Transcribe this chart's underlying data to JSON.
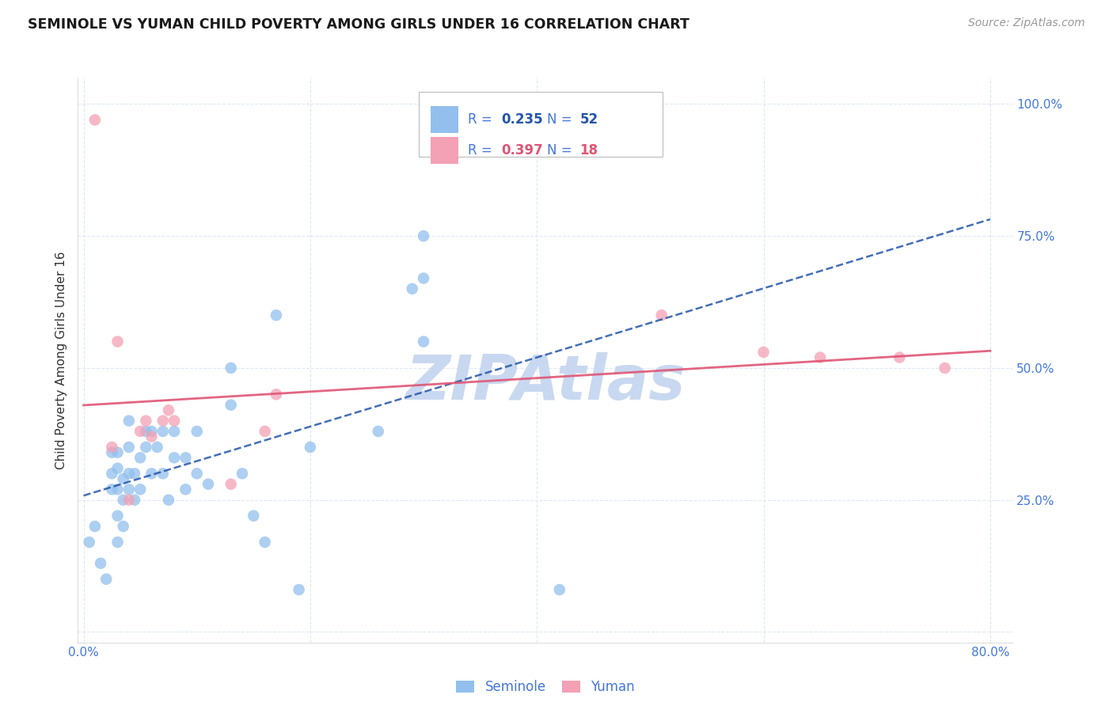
{
  "title": "SEMINOLE VS YUMAN CHILD POVERTY AMONG GIRLS UNDER 16 CORRELATION CHART",
  "source": "Source: ZipAtlas.com",
  "ylabel": "Child Poverty Among Girls Under 16",
  "xlim": [
    -0.005,
    0.82
  ],
  "ylim": [
    -0.02,
    1.05
  ],
  "xticks": [
    0.0,
    0.2,
    0.4,
    0.6,
    0.8
  ],
  "xticklabels": [
    "0.0%",
    "",
    "",
    "",
    "80.0%"
  ],
  "yticks": [
    0.0,
    0.25,
    0.5,
    0.75,
    1.0
  ],
  "yticklabels_left": [
    "",
    "",
    "",
    "",
    ""
  ],
  "yticklabels_right": [
    "",
    "25.0%",
    "50.0%",
    "75.0%",
    "100.0%"
  ],
  "seminole_R": 0.235,
  "seminole_N": 52,
  "yuman_R": 0.397,
  "yuman_N": 18,
  "seminole_color": "#92BFED",
  "yuman_color": "#F4A0B5",
  "seminole_line_color": "#2255AA",
  "yuman_line_color": "#E05575",
  "watermark_color": "#C8D8F0",
  "axis_label_color": "#4477DD",
  "grid_color": "#DDE8F5",
  "seminole_x": [
    0.005,
    0.01,
    0.015,
    0.02,
    0.025,
    0.025,
    0.025,
    0.03,
    0.03,
    0.03,
    0.03,
    0.03,
    0.035,
    0.035,
    0.035,
    0.04,
    0.04,
    0.04,
    0.04,
    0.045,
    0.045,
    0.05,
    0.05,
    0.055,
    0.055,
    0.06,
    0.06,
    0.065,
    0.07,
    0.07,
    0.075,
    0.08,
    0.08,
    0.09,
    0.09,
    0.1,
    0.1,
    0.11,
    0.13,
    0.13,
    0.14,
    0.15,
    0.16,
    0.17,
    0.19,
    0.2,
    0.26,
    0.29,
    0.3,
    0.3,
    0.42,
    0.3
  ],
  "seminole_y": [
    0.17,
    0.2,
    0.13,
    0.1,
    0.27,
    0.3,
    0.34,
    0.27,
    0.31,
    0.34,
    0.22,
    0.17,
    0.2,
    0.25,
    0.29,
    0.27,
    0.3,
    0.35,
    0.4,
    0.25,
    0.3,
    0.27,
    0.33,
    0.35,
    0.38,
    0.3,
    0.38,
    0.35,
    0.3,
    0.38,
    0.25,
    0.38,
    0.33,
    0.33,
    0.27,
    0.38,
    0.3,
    0.28,
    0.43,
    0.5,
    0.3,
    0.22,
    0.17,
    0.6,
    0.08,
    0.35,
    0.38,
    0.65,
    0.67,
    0.75,
    0.08,
    0.55
  ],
  "yuman_x": [
    0.01,
    0.025,
    0.03,
    0.04,
    0.05,
    0.055,
    0.06,
    0.07,
    0.075,
    0.08,
    0.13,
    0.16,
    0.17,
    0.51,
    0.6,
    0.65,
    0.72,
    0.76
  ],
  "yuman_y": [
    0.97,
    0.35,
    0.55,
    0.25,
    0.38,
    0.4,
    0.37,
    0.4,
    0.42,
    0.4,
    0.28,
    0.38,
    0.45,
    0.6,
    0.53,
    0.52,
    0.52,
    0.5
  ]
}
